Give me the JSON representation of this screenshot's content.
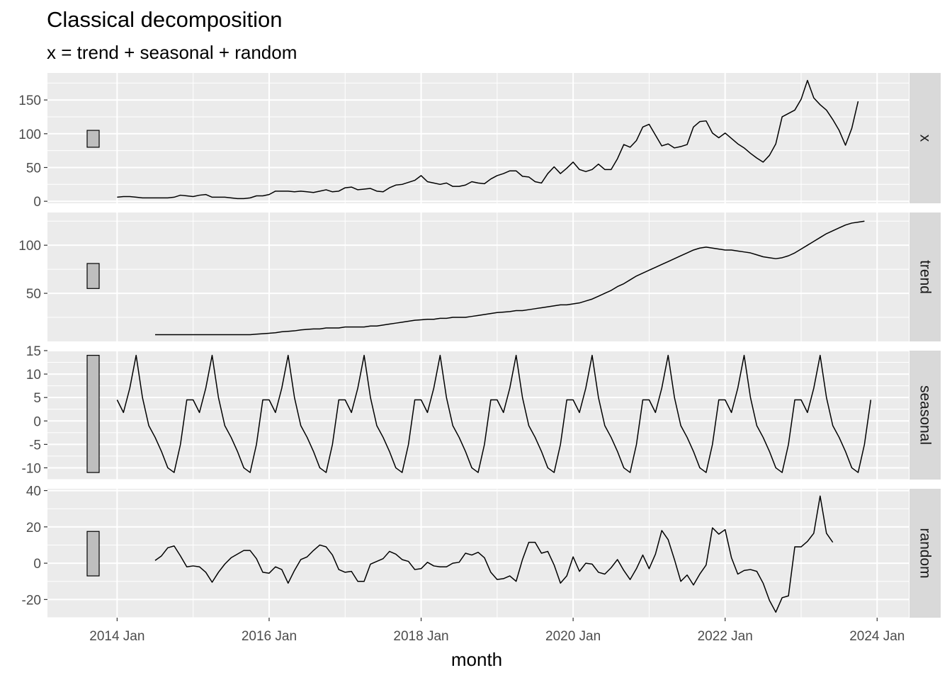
{
  "chart_data": {
    "type": "line",
    "title": "Classical decomposition",
    "subtitle": "x = trend + seasonal + random",
    "xlabel": "month",
    "x_start": "2014 Jan",
    "x_frequency": "monthly",
    "xlim": [
      "2013 Feb",
      "2024 Jun"
    ],
    "x_ticks": [
      "2014 Jan",
      "2016 Jan",
      "2018 Jan",
      "2020 Jan",
      "2022 Jan",
      "2024 Jan"
    ],
    "grid": true,
    "panels": [
      {
        "name": "x",
        "ylim": [
          -3,
          190
        ],
        "y_ticks": [
          0,
          50,
          100,
          150
        ],
        "range_bar": [
          80,
          105
        ],
        "values": [
          6,
          7,
          7,
          6,
          5,
          5,
          5,
          5,
          5,
          6,
          9,
          8,
          7,
          9,
          10,
          6,
          6,
          6,
          5,
          4,
          4,
          5,
          8,
          8,
          10,
          15,
          15,
          15,
          14,
          15,
          14,
          13,
          15,
          17,
          14,
          15,
          20,
          21,
          17,
          18,
          19,
          15,
          14,
          20,
          24,
          25,
          28,
          31,
          38,
          29,
          27,
          25,
          27,
          22,
          22,
          24,
          29,
          27,
          26,
          33,
          38,
          41,
          45,
          45,
          37,
          36,
          29,
          27,
          41,
          51,
          41,
          49,
          58,
          47,
          44,
          47,
          55,
          47,
          47,
          63,
          84,
          80,
          90,
          110,
          114,
          98,
          82,
          85,
          79,
          81,
          84,
          110,
          118,
          119,
          101,
          94,
          101,
          93,
          85,
          79,
          71,
          64,
          58,
          68,
          85,
          125,
          130,
          135,
          151,
          179,
          153,
          143,
          135,
          121,
          105,
          83,
          108,
          148
        ],
        "value_precision": "read from chart, nearest ~3"
      },
      {
        "name": "trend",
        "ylim": [
          0,
          134
        ],
        "y_ticks": [
          50,
          100
        ],
        "range_bar": [
          55,
          81
        ],
        "values": [
          null,
          null,
          null,
          null,
          null,
          null,
          7,
          7,
          7,
          7,
          7,
          7,
          7,
          7,
          7,
          7,
          7,
          7,
          7,
          7,
          7,
          7,
          7.5,
          8,
          8.5,
          9,
          10,
          10.5,
          11,
          12,
          12.5,
          13,
          13,
          14,
          14,
          14,
          15,
          15,
          15,
          15,
          16,
          16,
          17,
          18,
          19,
          20,
          21,
          22,
          22.5,
          23,
          23,
          24,
          24,
          25,
          25,
          25,
          26,
          27,
          28,
          29,
          30,
          30.5,
          31,
          32,
          32,
          33,
          34,
          35,
          36,
          37,
          38,
          38,
          39,
          40,
          42,
          44,
          47,
          50,
          53,
          57,
          60,
          64,
          68,
          71,
          74,
          77,
          80,
          83,
          86,
          89,
          92,
          95,
          97,
          98,
          97,
          96,
          95,
          95,
          94,
          93,
          92,
          90,
          88,
          87,
          86,
          87,
          89,
          92,
          96,
          100,
          104,
          108,
          112,
          115,
          118,
          121,
          123,
          124,
          125,
          null,
          null,
          null,
          null,
          null,
          null
        ]
      },
      {
        "name": "seasonal",
        "ylim": [
          -12.5,
          15
        ],
        "y_ticks": [
          -10,
          -5,
          0,
          5,
          10,
          15
        ],
        "range_bar": [
          -11,
          14
        ],
        "values": [
          4.5,
          1.8,
          7,
          14,
          5,
          -1,
          -3.5,
          -6.5,
          -10,
          -11,
          -5,
          4.5,
          4.5,
          1.8,
          7,
          14,
          5,
          -1,
          -3.5,
          -6.5,
          -10,
          -11,
          -5,
          4.5,
          4.5,
          1.8,
          7,
          14,
          5,
          -1,
          -3.5,
          -6.5,
          -10,
          -11,
          -5,
          4.5,
          4.5,
          1.8,
          7,
          14,
          5,
          -1,
          -3.5,
          -6.5,
          -10,
          -11,
          -5,
          4.5,
          4.5,
          1.8,
          7,
          14,
          5,
          -1,
          -3.5,
          -6.5,
          -10,
          -11,
          -5,
          4.5,
          4.5,
          1.8,
          7,
          14,
          5,
          -1,
          -3.5,
          -6.5,
          -10,
          -11,
          -5,
          4.5,
          4.5,
          1.8,
          7,
          14,
          5,
          -1,
          -3.5,
          -6.5,
          -10,
          -11,
          -5,
          4.5,
          4.5,
          1.8,
          7,
          14,
          5,
          -1,
          -3.5,
          -6.5,
          -10,
          -11,
          -5,
          4.5,
          4.5,
          1.8,
          7,
          14,
          5,
          -1,
          -3.5,
          -6.5,
          -10,
          -11,
          -5,
          4.5,
          4.5,
          1.8,
          7,
          14,
          5,
          -1,
          -3.5,
          -6.5,
          -10,
          -11,
          -5,
          4.5
        ]
      },
      {
        "name": "random",
        "ylim": [
          -30,
          41
        ],
        "y_ticks": [
          -20,
          0,
          20,
          40
        ],
        "range_bar": [
          -7,
          17.5
        ],
        "values": [
          null,
          null,
          null,
          null,
          null,
          null,
          1.5,
          4,
          8.5,
          9.5,
          4,
          -2,
          -1.5,
          -2,
          -5,
          -10.5,
          -5,
          -0.5,
          3,
          5,
          7,
          7,
          2.5,
          -5,
          -5.5,
          -2,
          -3.5,
          -11,
          -4,
          2,
          3.5,
          7,
          10,
          9,
          4.5,
          -3.5,
          -5,
          -4.5,
          -10,
          -10,
          -0.5,
          1,
          2.5,
          6.5,
          5,
          2,
          1,
          -3.5,
          -3,
          0.5,
          -1.5,
          -2,
          -2,
          0,
          0.5,
          5.5,
          4.5,
          6,
          3,
          -5,
          -9,
          -8.5,
          -7,
          -10,
          2,
          11.5,
          11.5,
          5.5,
          6.5,
          -1,
          -11,
          -7,
          3.5,
          -4.5,
          0,
          -0.5,
          -5,
          -6,
          -2.5,
          2,
          -4,
          -9,
          -3,
          4.5,
          -3,
          5,
          18,
          13,
          2,
          -10,
          -6.5,
          -12,
          -6,
          -1,
          19.5,
          16,
          18.5,
          3,
          -6,
          -4,
          -3.5,
          -4.5,
          -11,
          -20.5,
          -27,
          -19,
          -18,
          9,
          9,
          12,
          16.5,
          37,
          16.5,
          11.5,
          null,
          null,
          null,
          null,
          null,
          null
        ]
      }
    ]
  }
}
